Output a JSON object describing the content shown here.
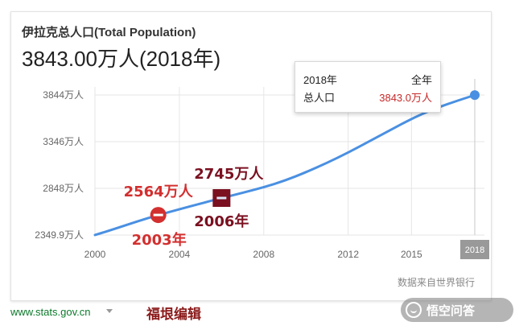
{
  "header": {
    "title": "伊拉克总人口(Total Population)",
    "value": "3843.00万人(2018年)"
  },
  "tooltip": {
    "year": "2018年",
    "scope": "全年",
    "metric": "总人口",
    "value": "3843.0万人"
  },
  "chart_data": {
    "type": "line",
    "x": [
      2000,
      2001,
      2002,
      2003,
      2004,
      2005,
      2006,
      2007,
      2008,
      2009,
      2010,
      2011,
      2012,
      2013,
      2014,
      2015,
      2016,
      2017,
      2018
    ],
    "series": [
      {
        "values": [
          2350,
          2420,
          2495,
          2564,
          2625,
          2685,
          2745,
          2800,
          2860,
          2930,
          3020,
          3120,
          3230,
          3350,
          3470,
          3590,
          3690,
          3770,
          3843
        ]
      }
    ],
    "xlim": [
      2000,
      2018
    ],
    "ylim": [
      2349.9,
      3844
    ],
    "x_ticks": [
      2000,
      2004,
      2008,
      2012,
      2015
    ],
    "x_tick_labels": [
      "2000",
      "2004",
      "2008",
      "2012",
      "2015"
    ],
    "x_end_label": "2018",
    "y_ticks": [
      2349.9,
      2848,
      3346,
      3844
    ],
    "y_tick_labels": [
      "2349.9万人",
      "2848万人",
      "3346万人",
      "3844万人"
    ],
    "grid": true,
    "highlight_year": 2018,
    "annotations": [
      {
        "x": 2003,
        "y": 2564,
        "value_label": "2564万人",
        "year_label": "2003年",
        "color": "#d32f2f",
        "shape": "circle"
      },
      {
        "x": 2006,
        "y": 2745,
        "value_label": "2745万人",
        "year_label": "2006年",
        "color": "#7a1020",
        "shape": "square"
      }
    ],
    "colors": {
      "line": "#4a90e2",
      "grid": "#e6e6e6",
      "axis_text": "#666666",
      "hover_line": "#c8c8c8",
      "x_badge": "#999999"
    }
  },
  "source": "数据来自世界银行",
  "footer": {
    "url": "www.stats.gov.cn",
    "editor": "福垠编辑"
  },
  "watermark": {
    "text": "悟空问答"
  }
}
